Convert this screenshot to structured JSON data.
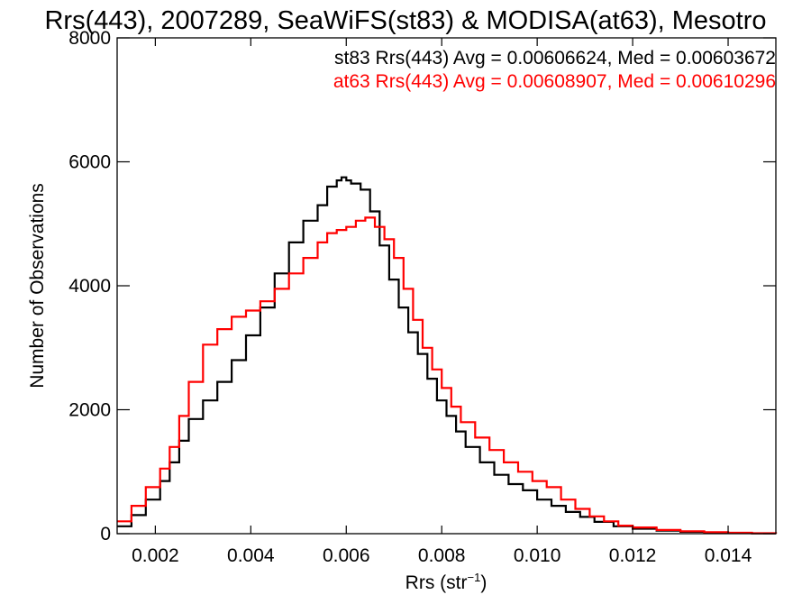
{
  "chart_data": {
    "type": "line",
    "title": "Rrs(443), 2007289, SeaWiFS(st83) & MODISA(at63), Mesotro",
    "xlabel_main": "Rrs (str",
    "xlabel_sup": "−1",
    "xlabel_close": ")",
    "ylabel": "Number of Observations",
    "xlim": [
      0.0012,
      0.015
    ],
    "ylim": [
      0,
      8000
    ],
    "xticks": [
      0.002,
      0.004,
      0.006,
      0.008,
      0.01,
      0.012,
      0.014
    ],
    "xtick_labels": [
      "0.002",
      "0.004",
      "0.006",
      "0.008",
      "0.010",
      "0.012",
      "0.014"
    ],
    "yticks": [
      0,
      2000,
      4000,
      6000,
      8000
    ],
    "ytick_labels": [
      "0",
      "2000",
      "4000",
      "6000",
      "8000"
    ],
    "grid": false,
    "legend_position": "top-right",
    "series": [
      {
        "name": "st83",
        "color": "#000000",
        "legend_text": "st83 Rrs(443) Avg = 0.00606624, Med = 0.00603672",
        "x": [
          0.0012,
          0.0015,
          0.0018,
          0.0021,
          0.0023,
          0.0025,
          0.0027,
          0.003,
          0.0033,
          0.0036,
          0.0039,
          0.0042,
          0.0045,
          0.0048,
          0.0051,
          0.0054,
          0.0056,
          0.0058,
          0.0059,
          0.006,
          0.0061,
          0.0063,
          0.0065,
          0.0067,
          0.0069,
          0.0071,
          0.0073,
          0.0075,
          0.0077,
          0.0079,
          0.0081,
          0.0083,
          0.0085,
          0.0088,
          0.0091,
          0.0094,
          0.0097,
          0.01,
          0.0103,
          0.0106,
          0.0109,
          0.0112,
          0.0116,
          0.012,
          0.0125,
          0.013,
          0.0135,
          0.014,
          0.0145,
          0.015
        ],
        "y": [
          120,
          300,
          550,
          850,
          1150,
          1500,
          1850,
          2150,
          2450,
          2800,
          3200,
          3650,
          4200,
          4700,
          5050,
          5300,
          5600,
          5700,
          5750,
          5700,
          5650,
          5550,
          5200,
          4650,
          4100,
          3650,
          3250,
          2900,
          2500,
          2150,
          1900,
          1650,
          1400,
          1150,
          950,
          800,
          700,
          550,
          450,
          350,
          270,
          190,
          120,
          80,
          50,
          30,
          20,
          10,
          5,
          0
        ]
      },
      {
        "name": "at63",
        "color": "#ff0000",
        "legend_text": "at63 Rrs(443) Avg = 0.00608907, Med = 0.00610296",
        "x": [
          0.0012,
          0.0015,
          0.0018,
          0.0021,
          0.0023,
          0.0025,
          0.0027,
          0.003,
          0.0033,
          0.0036,
          0.0039,
          0.0042,
          0.0045,
          0.0048,
          0.0051,
          0.0054,
          0.0056,
          0.0058,
          0.006,
          0.0062,
          0.0064,
          0.0066,
          0.0068,
          0.007,
          0.0072,
          0.0074,
          0.0076,
          0.0078,
          0.008,
          0.0082,
          0.0084,
          0.0087,
          0.009,
          0.0093,
          0.0096,
          0.0099,
          0.0102,
          0.0105,
          0.0108,
          0.0111,
          0.0114,
          0.0117,
          0.012,
          0.0125,
          0.013,
          0.0135,
          0.014,
          0.0145,
          0.015
        ],
        "y": [
          200,
          450,
          750,
          1050,
          1400,
          1900,
          2450,
          3050,
          3300,
          3500,
          3600,
          3750,
          3950,
          4200,
          4450,
          4700,
          4850,
          4900,
          4950,
          5050,
          5100,
          4950,
          4750,
          4450,
          3950,
          3450,
          3000,
          2650,
          2350,
          2050,
          1800,
          1550,
          1350,
          1150,
          1000,
          850,
          750,
          550,
          400,
          280,
          200,
          130,
          100,
          60,
          40,
          25,
          15,
          8,
          0
        ]
      }
    ]
  }
}
